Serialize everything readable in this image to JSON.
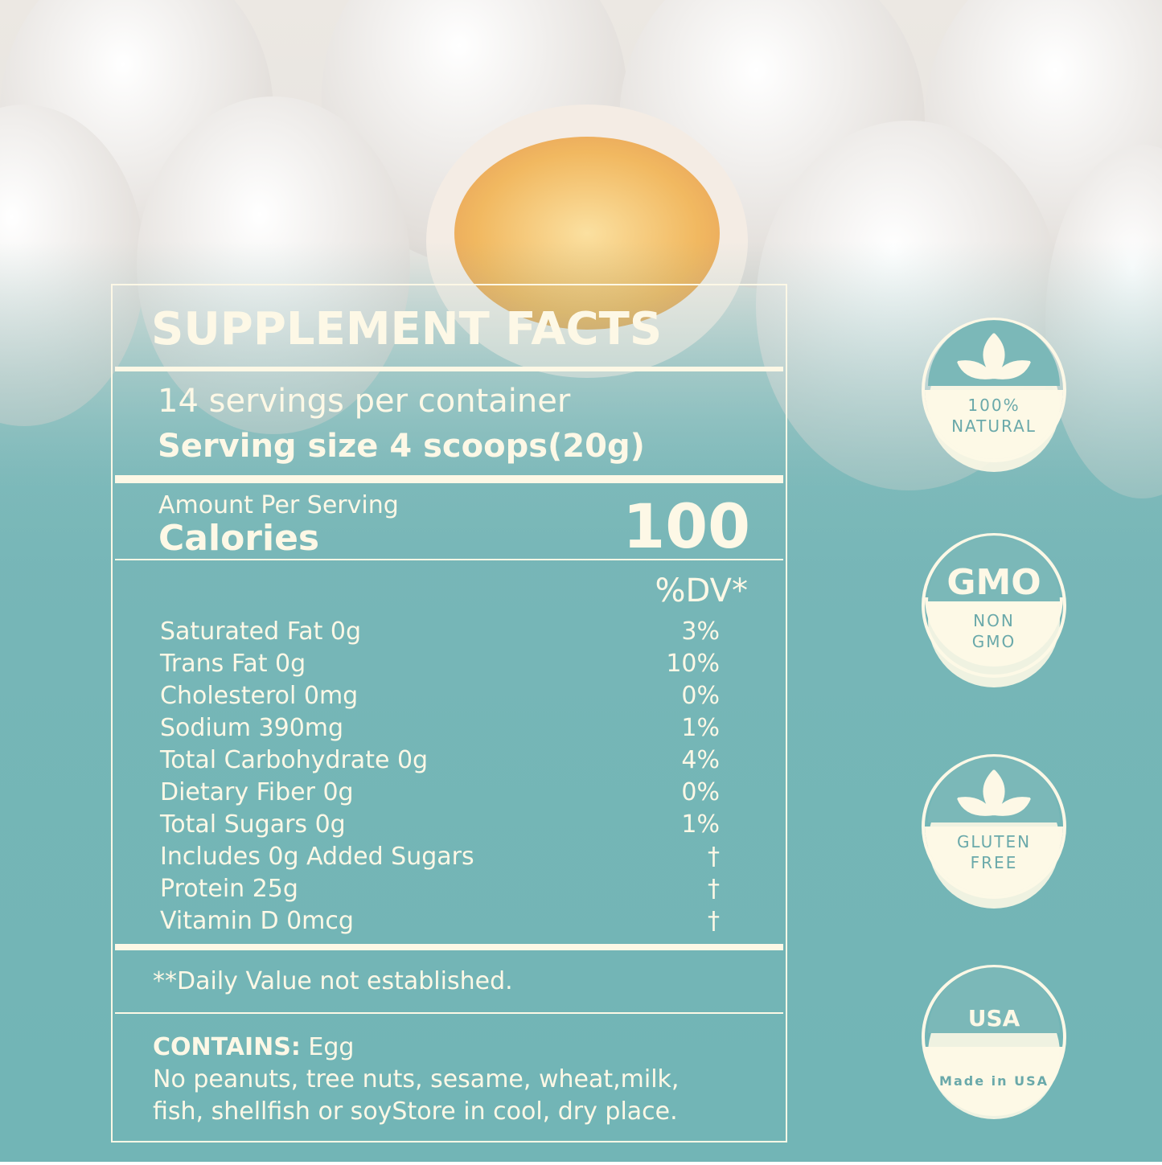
{
  "panel": {
    "title": "SUPPLEMENT FACTS",
    "servings": "14 servings per container",
    "serving_size": "Serving size 4 scoops(20g)",
    "amount_label": "Amount Per Serving",
    "calories_label": "Calories",
    "calories": "100",
    "dv_header": "%DV*",
    "rows": [
      [
        "Saturated Fat 0g",
        "3%"
      ],
      [
        "Trans Fat 0g",
        "10%"
      ],
      [
        "Cholesterol 0mg",
        "0%"
      ],
      [
        "Sodium 390mg",
        "1%"
      ],
      [
        "Total Carbohydrate 0g",
        "4%"
      ],
      [
        "Dietary Fiber 0g",
        "0%"
      ],
      [
        "Total Sugars 0g",
        "1%"
      ],
      [
        "Includes 0g Added Sugars",
        "†"
      ],
      [
        "Protein 25g",
        "†"
      ],
      [
        "Vitamin D 0mcg",
        "†"
      ]
    ],
    "footnote": "**Daily Value not established.",
    "contains_label": "CONTAINS:",
    "contains": " Egg",
    "allergen_lines": [
      "No peanuts, tree nuts, sesame, wheat,milk,",
      "fish, shellfish or soyStore in cool, dry place."
    ]
  },
  "badges": [
    {
      "lines": [
        "100%",
        "NATURAL"
      ]
    },
    {
      "icon_text": "GMO",
      "lines": [
        "NON",
        "GMO"
      ]
    },
    {
      "lines": [
        "GLUTEN",
        "FREE"
      ]
    },
    {
      "icon_text": "USA",
      "lines": [
        "Made in USA"
      ]
    }
  ]
}
